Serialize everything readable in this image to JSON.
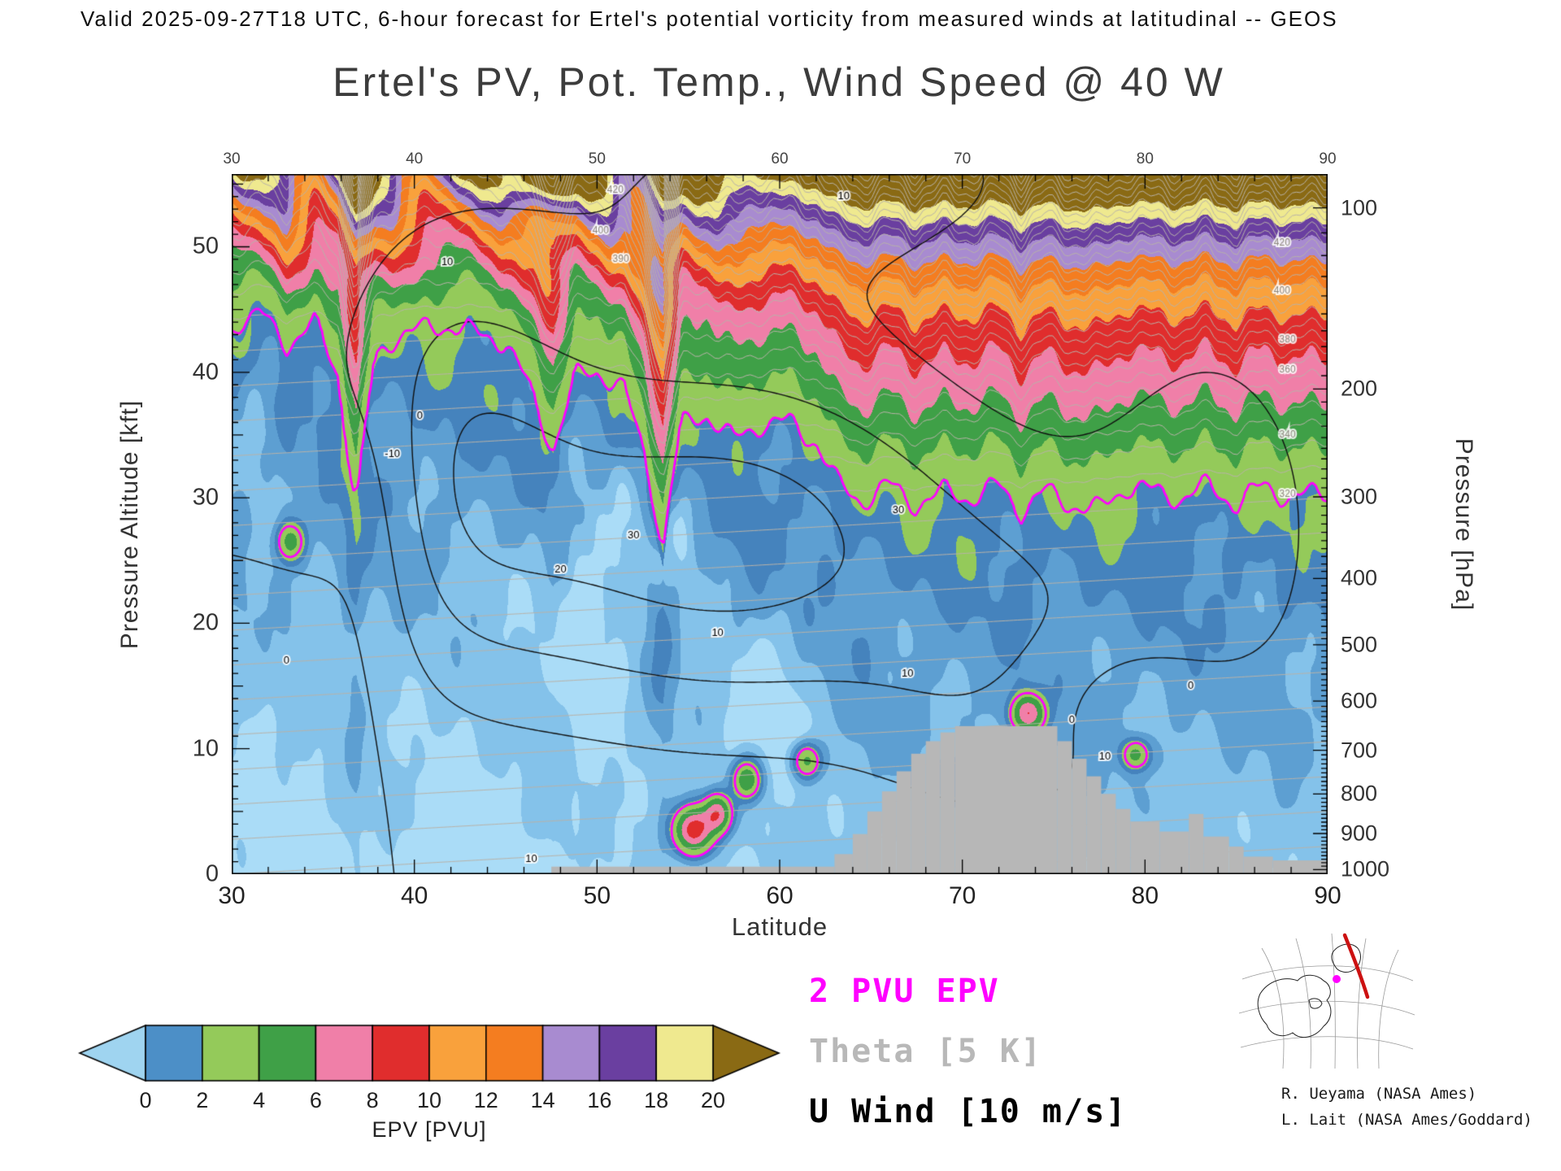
{
  "header": {
    "valid_line": "Valid 2025-09-27T18 UTC, 6-hour forecast for Ertel's potential vorticity from measured winds at latitudinal -- GEOS"
  },
  "title": "Ertel's PV, Pot. Temp., Wind Speed @ 40 W",
  "axes": {
    "x": {
      "label": "Latitude",
      "range": [
        30,
        90
      ],
      "ticks": [
        30,
        40,
        50,
        60,
        70,
        80,
        90
      ],
      "minor_step": 2
    },
    "y_left": {
      "label": "Pressure Altitude [kft]",
      "range": [
        0,
        55.8
      ],
      "ticks": [
        0,
        10,
        20,
        30,
        40,
        50
      ]
    },
    "y_right": {
      "label": "Pressure [hPa]",
      "ticks": [
        100,
        200,
        300,
        400,
        500,
        600,
        700,
        800,
        900,
        1000
      ],
      "tick_altitudes_kft": {
        "100": 53.1,
        "200": 38.66,
        "300": 30.07,
        "400": 23.56,
        "500": 18.29,
        "600": 13.8,
        "700": 9.88,
        "800": 6.39,
        "900": 3.24,
        "1000": 0.36
      }
    }
  },
  "colorbar": {
    "label": "EPV [PVU]",
    "ticks": [
      0,
      2,
      4,
      6,
      8,
      10,
      12,
      14,
      16,
      18,
      20
    ],
    "segment_colors": [
      "#4c8fc7",
      "#94ca5a",
      "#3fa047",
      "#f07fa8",
      "#e02d2d",
      "#f9a13c",
      "#f47d20",
      "#a88bd0",
      "#6a3fa0",
      "#efe98f"
    ],
    "under_color": "#9fd4f0",
    "over_color": "#8a6a14"
  },
  "legend": [
    {
      "text": "2 PVU EPV",
      "color": "#ff00ff"
    },
    {
      "text": "Theta [5 K]",
      "color": "#b8b8b8"
    },
    {
      "text": "U Wind [10 m/s]",
      "color": "#000000"
    }
  ],
  "credits": [
    "R. Ueyama (NASA Ames)",
    "L. Lait (NASA Ames/Goddard)"
  ],
  "chart_data": {
    "type": "heatmap",
    "title": "Ertel's PV, Pot. Temp., Wind Speed @ 40 W",
    "x": {
      "name": "Latitude",
      "units": "deg N",
      "range": [
        30,
        90
      ]
    },
    "y": {
      "name": "Pressure Altitude",
      "units": "kft",
      "range": [
        0,
        55.8
      ]
    },
    "fill": {
      "name": "Ertel's potential vorticity",
      "units": "PVU",
      "levels": [
        0,
        2,
        4,
        6,
        8,
        10,
        12,
        14,
        16,
        18,
        20
      ]
    },
    "overlays": [
      {
        "name": "2 PVU EPV contour",
        "color": "#ff00ff"
      },
      {
        "name": "Potential temperature",
        "interval_K": 5,
        "color": "#b9b3a9"
      },
      {
        "name": "Zonal wind",
        "interval_ms": 10,
        "color": "#000000",
        "negative_style": "dashed"
      }
    ],
    "tropopause_2pvu_lat_kft": [
      [
        30,
        43
      ],
      [
        31.5,
        44.5
      ],
      [
        33,
        41.5
      ],
      [
        34.5,
        44
      ],
      [
        35.8,
        40
      ],
      [
        36.8,
        29.5
      ],
      [
        37.8,
        41
      ],
      [
        39,
        43
      ],
      [
        40.5,
        43.5
      ],
      [
        42,
        43.8
      ],
      [
        43.5,
        43
      ],
      [
        45,
        42.5
      ],
      [
        46.2,
        39
      ],
      [
        47.6,
        33.5
      ],
      [
        48.8,
        39.5
      ],
      [
        50,
        40
      ],
      [
        51.5,
        38.5
      ],
      [
        52.6,
        33
      ],
      [
        53.6,
        24.5
      ],
      [
        54.6,
        35.5
      ],
      [
        56,
        36.5
      ],
      [
        57.5,
        34.5
      ],
      [
        59,
        36
      ],
      [
        60.5,
        36
      ],
      [
        62,
        34.5
      ],
      [
        63.2,
        31
      ],
      [
        64.5,
        29.8
      ],
      [
        66,
        31
      ],
      [
        67.5,
        29.5
      ],
      [
        69,
        30.5
      ],
      [
        70.5,
        30
      ],
      [
        72,
        31
      ],
      [
        73.2,
        29
      ],
      [
        74.5,
        30.5
      ],
      [
        76,
        29.5
      ],
      [
        77.5,
        29
      ],
      [
        79,
        31
      ],
      [
        80.5,
        30.5
      ],
      [
        82,
        30
      ],
      [
        83.5,
        31
      ],
      [
        85,
        29.5
      ],
      [
        86.5,
        31
      ],
      [
        88,
        30
      ],
      [
        90,
        30.5
      ]
    ],
    "terrain_blocks": [
      [
        47.5,
        63,
        0.6
      ],
      [
        63,
        64,
        1.6
      ],
      [
        64,
        64.8,
        3.2
      ],
      [
        64.8,
        65.6,
        5
      ],
      [
        65.6,
        66.4,
        6.6
      ],
      [
        66.4,
        67.2,
        8.2
      ],
      [
        67.2,
        68,
        9.6
      ],
      [
        68,
        68.8,
        10.6
      ],
      [
        68.8,
        69.6,
        11.3
      ],
      [
        69.6,
        75.2,
        11.8
      ],
      [
        75.2,
        76,
        10.6
      ],
      [
        76,
        76.8,
        9.2
      ],
      [
        76.8,
        77.6,
        7.8
      ],
      [
        77.6,
        78.4,
        6.4
      ],
      [
        78.4,
        79.2,
        5.2
      ],
      [
        79.2,
        80.8,
        4.2
      ],
      [
        80.8,
        82.4,
        3.4
      ],
      [
        82.4,
        83.2,
        4.8
      ],
      [
        83.2,
        84.6,
        3
      ],
      [
        84.6,
        85.4,
        2.2
      ],
      [
        85.4,
        87,
        1.4
      ],
      [
        87,
        90,
        1.1
      ]
    ],
    "wind_speed_labels": [
      [
        -10,
        38.8,
        33.5
      ],
      [
        0,
        33,
        17
      ],
      [
        0,
        40.3,
        36.5
      ],
      [
        0,
        76,
        12.3
      ],
      [
        0,
        82.5,
        15
      ],
      [
        10,
        41.8,
        48.8
      ],
      [
        10,
        63.5,
        54
      ],
      [
        10,
        56.6,
        19.2
      ],
      [
        10,
        67,
        16
      ],
      [
        10,
        77.8,
        9.4
      ],
      [
        10,
        46.4,
        1.2
      ],
      [
        20,
        48,
        24.3
      ],
      [
        30,
        52,
        27
      ],
      [
        30,
        66.5,
        29
      ]
    ],
    "theta_labels_K": [
      [
        420,
        51,
        54.5
      ],
      [
        400,
        50.2,
        51.3
      ],
      [
        390,
        51.3,
        49
      ],
      [
        420,
        87.5,
        50.3
      ],
      [
        400,
        87.5,
        46.5
      ],
      [
        380,
        87.8,
        42.6
      ],
      [
        360,
        87.8,
        40.2
      ],
      [
        340,
        87.8,
        35
      ],
      [
        320,
        87.8,
        30.3
      ]
    ],
    "reconstruction": {
      "wind_gaussians": [
        [
          24,
          41,
          6,
          34,
          12
        ],
        [
          34,
          57,
          10,
          27,
          11
        ],
        [
          15,
          73,
          6,
          16,
          10
        ],
        [
          14,
          84,
          5,
          28,
          13
        ],
        [
          -16,
          37.6,
          2.6,
          30,
          9
        ],
        [
          12,
          63,
          12,
          56,
          7
        ],
        [
          -12,
          32.5,
          3.5,
          14,
          9
        ],
        [
          -9,
          79,
          4,
          14,
          4
        ]
      ],
      "epv_blobs": [
        [
          9,
          55.3,
          0.7,
          3.5,
          1.2
        ],
        [
          7,
          56.6,
          0.5,
          4.8,
          1.0
        ],
        [
          5,
          58.2,
          0.5,
          7.5,
          1.0
        ],
        [
          7,
          73.6,
          0.6,
          12.8,
          1.0
        ],
        [
          4,
          61.5,
          0.5,
          9,
          0.9
        ],
        [
          4,
          33.2,
          0.5,
          26.5,
          1.0
        ],
        [
          4,
          79.5,
          0.5,
          9.5,
          0.8
        ],
        [
          8,
          46.5,
          1.2,
          55.5,
          1.5
        ],
        [
          -0.8,
          49.5,
          2.5,
          24,
          7
        ],
        [
          -0.7,
          54.5,
          1.5,
          29,
          4
        ],
        [
          -0.8,
          31.5,
          1.5,
          38,
          5
        ],
        [
          -0.5,
          59,
          2,
          14,
          5
        ]
      ],
      "fill_blue_shades": [
        "#aadcf7",
        "#84c2ea",
        "#5d9fd2",
        "#4583bd"
      ]
    }
  }
}
